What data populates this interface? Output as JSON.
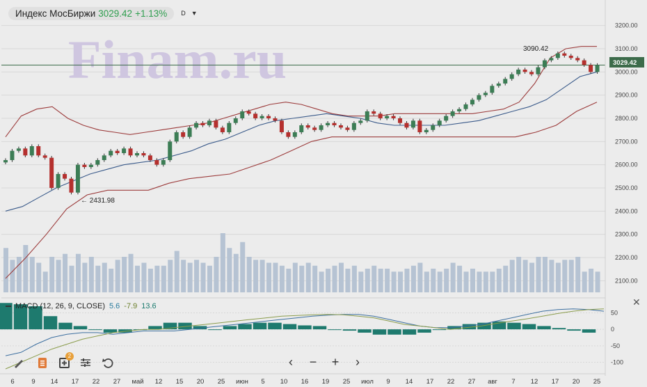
{
  "header": {
    "instrument": "Индекс МосБиржи",
    "price": "3029.42",
    "change": "+1.13%",
    "timeframe": "D",
    "dropdown": "▼"
  },
  "watermark": "Finam.ru",
  "colors": {
    "up": "#3c7d55",
    "down": "#b5302e",
    "bb": "#9c3b3b",
    "mid": "#3a5a8a",
    "vol": "#b6c3d3",
    "macdLine": "#3c6fa0",
    "signalLine": "#8a9c4c",
    "hist": "#1e7a6e",
    "lastLine": "#3c6b4a"
  },
  "last_price_tag": "3029.42",
  "macd_header": {
    "label": "MACD (12, 26, 9, CLOSE)",
    "v1": "5.6",
    "v2": "-7.9",
    "v3": "13.6"
  },
  "y_ticks": [
    "3200.00",
    "3100.00",
    "3000.00",
    "2900.00",
    "2800.00",
    "2700.00",
    "2600.00",
    "2500.00",
    "2400.00",
    "2300.00",
    "2200.00",
    "2100.00"
  ],
  "macd_ticks": [
    "50",
    "0",
    "-50",
    "-100"
  ],
  "x_ticks": [
    "6",
    "9",
    "14",
    "17",
    "22",
    "27",
    "май",
    "12",
    "15",
    "20",
    "25",
    "июн",
    "5",
    "10",
    "16",
    "19",
    "25",
    "июл",
    "9",
    "14",
    "17",
    "22",
    "27",
    "авг",
    "7",
    "12",
    "17",
    "20",
    "25"
  ],
  "annotations": {
    "high": "3090.42",
    "low": "← 2431.98"
  },
  "toolbar": {
    "icons": [
      "pencil-icon",
      "notes-icon",
      "add-indicator-icon",
      "settings-icon",
      "undo-icon"
    ],
    "badge": "2"
  },
  "nav": [
    "‹",
    "−",
    "+",
    "›"
  ],
  "close_label": "✕",
  "chart_data": {
    "type": "candlestick",
    "title": "Индекс МосБиржи",
    "timeframe": "D",
    "ylim": [
      2050,
      3250
    ],
    "series": {
      "close": [
        2620,
        2660,
        2670,
        2640,
        2680,
        2640,
        2630,
        2500,
        2560,
        2540,
        2480,
        2600,
        2590,
        2600,
        2620,
        2640,
        2660,
        2650,
        2670,
        2640,
        2650,
        2640,
        2620,
        2600,
        2620,
        2700,
        2740,
        2720,
        2760,
        2780,
        2770,
        2790,
        2760,
        2740,
        2780,
        2800,
        2830,
        2820,
        2800,
        2810,
        2800,
        2790,
        2740,
        2720,
        2740,
        2770,
        2760,
        2750,
        2770,
        2780,
        2770,
        2760,
        2750,
        2780,
        2790,
        2830,
        2820,
        2800,
        2810,
        2800,
        2780,
        2760,
        2790,
        2740,
        2750,
        2770,
        2790,
        2810,
        2830,
        2840,
        2860,
        2880,
        2900,
        2910,
        2940,
        2950,
        2970,
        2990,
        3010,
        3000,
        2990,
        3020,
        3050,
        3060,
        3080,
        3070,
        3060,
        3050,
        3030,
        3000,
        3029.42
      ],
      "upper_band": [
        2720,
        2810,
        2840,
        2850,
        2800,
        2770,
        2750,
        2740,
        2730,
        2740,
        2750,
        2760,
        2770,
        2780,
        2800,
        2820,
        2840,
        2860,
        2870,
        2860,
        2840,
        2820,
        2810,
        2810,
        2810,
        2820,
        2820,
        2820,
        2820,
        2820,
        2820,
        2830,
        2840,
        2870,
        2950,
        3060,
        3100,
        3110,
        3110
      ],
      "mid_band": [
        2400,
        2420,
        2460,
        2500,
        2530,
        2560,
        2580,
        2600,
        2610,
        2620,
        2640,
        2660,
        2690,
        2710,
        2740,
        2770,
        2790,
        2800,
        2810,
        2820,
        2810,
        2800,
        2780,
        2770,
        2770,
        2770,
        2770,
        2780,
        2790,
        2810,
        2830,
        2850,
        2880,
        2930,
        2980,
        3000
      ],
      "lower_band": [
        2110,
        2200,
        2300,
        2410,
        2470,
        2490,
        2490,
        2490,
        2520,
        2540,
        2550,
        2560,
        2590,
        2620,
        2660,
        2700,
        2720,
        2720,
        2720,
        2720,
        2720,
        2720,
        2720,
        2720,
        2720,
        2720,
        2740,
        2770,
        2830,
        2870
      ],
      "volume": [
        0.75,
        0.55,
        0.6,
        0.8,
        0.6,
        0.5,
        0.35,
        0.6,
        0.55,
        0.65,
        0.45,
        0.65,
        0.5,
        0.6,
        0.45,
        0.5,
        0.4,
        0.55,
        0.6,
        0.65,
        0.45,
        0.5,
        0.4,
        0.45,
        0.45,
        0.55,
        0.7,
        0.55,
        0.5,
        0.55,
        0.5,
        0.45,
        0.6,
        1.0,
        0.75,
        0.65,
        0.85,
        0.6,
        0.55,
        0.55,
        0.5,
        0.5,
        0.45,
        0.4,
        0.5,
        0.45,
        0.5,
        0.45,
        0.35,
        0.4,
        0.45,
        0.5,
        0.4,
        0.45,
        0.35,
        0.4,
        0.45,
        0.4,
        0.4,
        0.35,
        0.35,
        0.4,
        0.45,
        0.5,
        0.35,
        0.4,
        0.35,
        0.4,
        0.5,
        0.45,
        0.35,
        0.4,
        0.35,
        0.35,
        0.35,
        0.4,
        0.45,
        0.55,
        0.6,
        0.55,
        0.5,
        0.6,
        0.6,
        0.55,
        0.5,
        0.55,
        0.55,
        0.6,
        0.35,
        0.4,
        0.35
      ],
      "macd_ylim": [
        -120,
        70
      ],
      "macd": [
        -80,
        -70,
        -45,
        -25,
        -15,
        -10,
        -10,
        -15,
        -10,
        -5,
        -5,
        -5,
        0,
        5,
        10,
        15,
        20,
        25,
        30,
        35,
        40,
        43,
        45,
        45,
        40,
        30,
        20,
        10,
        5,
        5,
        10,
        15,
        25,
        35,
        45,
        55,
        60,
        62,
        60,
        55
      ],
      "signal": [
        -120,
        -100,
        -80,
        -60,
        -45,
        -30,
        -20,
        -10,
        -5,
        0,
        0,
        5,
        10,
        15,
        20,
        25,
        30,
        35,
        40,
        42,
        44,
        45,
        44,
        40,
        35,
        25,
        15,
        10,
        5,
        0,
        5,
        10,
        18,
        25,
        32,
        40,
        48,
        55,
        60,
        62
      ],
      "histogram": [
        40,
        38,
        35,
        20,
        10,
        5,
        0,
        -5,
        -5,
        0,
        5,
        10,
        10,
        5,
        0,
        5,
        8,
        10,
        10,
        8,
        6,
        5,
        0,
        -2,
        -5,
        -8,
        -8,
        -8,
        -5,
        0,
        5,
        8,
        10,
        12,
        10,
        8,
        5,
        2,
        -2,
        -5
      ]
    }
  }
}
